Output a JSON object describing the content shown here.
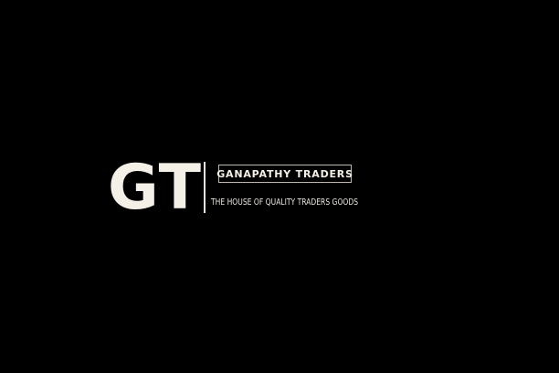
{
  "logo": {
    "monogram": "GT",
    "company_name": "GANAPATHY TRADERS",
    "tagline": "THE HOUSE OF QUALITY TRADERS GOODS"
  },
  "colors": {
    "background": "#000000",
    "text": "#f4f0e8",
    "box_border": "#bdb8ae"
  }
}
